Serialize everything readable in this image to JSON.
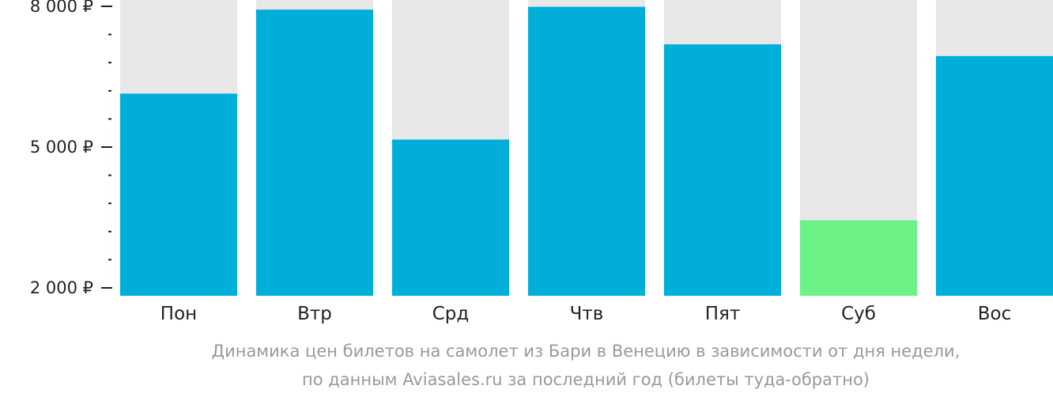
{
  "chart_data": {
    "type": "bar",
    "categories": [
      "Пон",
      "Втр",
      "Срд",
      "Чтв",
      "Пят",
      "Суб",
      "Вос"
    ],
    "values": [
      6140,
      7930,
      5160,
      7990,
      7190,
      3440,
      6940
    ],
    "highlight_index": 5,
    "ylim": [
      2000,
      8000
    ],
    "yticks": [
      {
        "value": 8000,
        "label": "8 000 ₽"
      },
      {
        "value": 5000,
        "label": "5 000 ₽"
      },
      {
        "value": 2000,
        "label": "2 000 ₽"
      }
    ],
    "minor_tick_step": 600,
    "grid": false,
    "colors": {
      "bar": "#00afd9",
      "bar_highlight": "#6cf287",
      "bar_background": "#e8e8e8",
      "axis_text": "#222222",
      "caption_text": "#999999"
    }
  },
  "caption": {
    "line1": "Динамика цен билетов на самолет из Бари в Венецию в зависимости от дня недели,",
    "line2": "по данным Aviasales.ru за последний год (билеты туда-обратно)"
  }
}
